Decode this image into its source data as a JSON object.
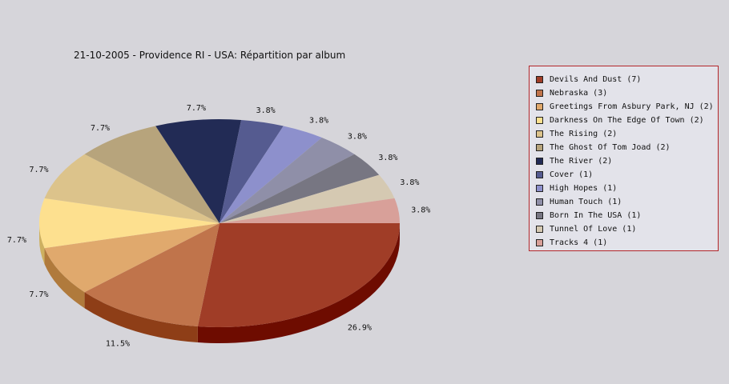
{
  "chart_data": {
    "type": "pie",
    "title": "21-10-2005 - Providence RI - USA:  Répartition par album",
    "slices": [
      {
        "label": "Devils And Dust (7)",
        "value": 7,
        "pct_label": "26.9%",
        "color": "#a03d27",
        "side": "#6e0c00"
      },
      {
        "label": "Nebraska (3)",
        "value": 3,
        "pct_label": "11.5%",
        "color": "#c0744b",
        "side": "#8e3e17"
      },
      {
        "label": "Greetings From Asbury Park, NJ (2)",
        "value": 2,
        "pct_label": "7.7%",
        "color": "#e0a96d",
        "side": "#b07a3c"
      },
      {
        "label": "Darkness On The Edge Of Town (2)",
        "value": 2,
        "pct_label": "7.7%",
        "color": "#fde08f",
        "side": "#cdb060"
      },
      {
        "label": "The Rising (2)",
        "value": 2,
        "pct_label": "7.7%",
        "color": "#dcc38b",
        "side": "#ab935c"
      },
      {
        "label": "The Ghost Of Tom Joad (2)",
        "value": 2,
        "pct_label": "7.7%",
        "color": "#b7a47c",
        "side": "#87744d"
      },
      {
        "label": "The River (2)",
        "value": 2,
        "pct_label": "7.7%",
        "color": "#222b55",
        "side": "#0a1030"
      },
      {
        "label": "Cover (1)",
        "value": 1,
        "pct_label": "3.8%",
        "color": "#555b90",
        "side": "#2e3365"
      },
      {
        "label": "High Hopes (1)",
        "value": 1,
        "pct_label": "3.8%",
        "color": "#8d90cc",
        "side": "#5d609c"
      },
      {
        "label": "Human Touch (1)",
        "value": 1,
        "pct_label": "3.8%",
        "color": "#8f8fa8",
        "side": "#5f5f78"
      },
      {
        "label": "Born In The USA (1)",
        "value": 1,
        "pct_label": "3.8%",
        "color": "#777682",
        "side": "#4a4954"
      },
      {
        "label": "Tunnel Of Love (1)",
        "value": 1,
        "pct_label": "3.8%",
        "color": "#d5c9b2",
        "side": "#a59982"
      },
      {
        "label": "Tracks 4 (1)",
        "value": 1,
        "pct_label": "3.8%",
        "color": "#d8a099",
        "side": "#a8706a"
      }
    ]
  }
}
